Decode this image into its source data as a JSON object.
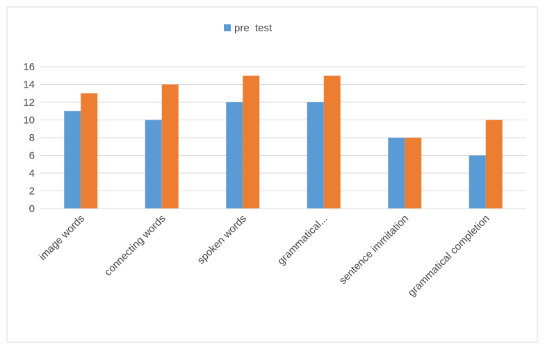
{
  "chart_data": {
    "type": "bar",
    "title": "",
    "xlabel": "",
    "ylabel": "",
    "categories": [
      "image words",
      "connecting words",
      "spoken words",
      "grammatical...",
      "sentence immitation",
      "grammatical completion"
    ],
    "series": [
      {
        "name": "pre  test",
        "color": "#5b9bd5",
        "values": [
          11,
          10,
          12,
          12,
          8,
          6
        ]
      },
      {
        "color": "#ed7d31",
        "values": [
          13,
          14,
          15,
          15,
          8,
          10
        ]
      }
    ],
    "ylim": [
      0,
      16
    ],
    "yticks": [
      0,
      2,
      4,
      6,
      8,
      10,
      12,
      14,
      16
    ],
    "grid": true,
    "legend_position": "top"
  }
}
